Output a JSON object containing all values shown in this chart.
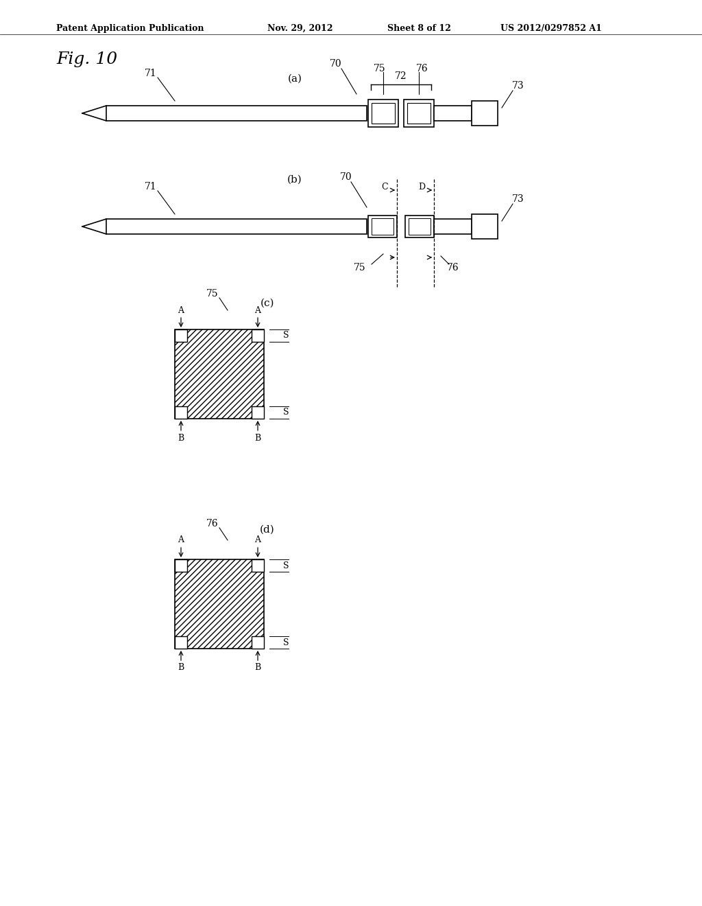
{
  "bg_color": "#ffffff",
  "header_text": "Patent Application Publication",
  "header_date": "Nov. 29, 2012",
  "header_sheet": "Sheet 8 of 12",
  "header_patent": "US 2012/0297852 A1",
  "fig_label": "Fig. 10",
  "page_width": 10.24,
  "page_height": 13.2,
  "dpi": 100
}
